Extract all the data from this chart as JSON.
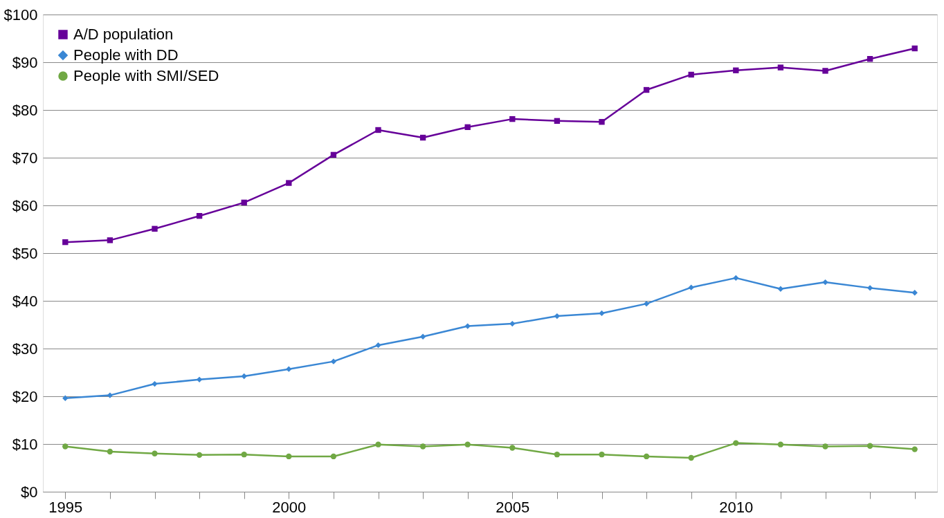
{
  "chart_data": {
    "type": "line",
    "categories": [
      "1995",
      null,
      null,
      null,
      null,
      "2000",
      null,
      null,
      null,
      null,
      "2005",
      null,
      null,
      null,
      null,
      "2010",
      null,
      null,
      null,
      null
    ],
    "series": [
      {
        "name": "A/D population",
        "color": "#660099",
        "marker": "square",
        "values": [
          52.3,
          52.7,
          55.1,
          57.8,
          60.6,
          64.7,
          70.6,
          75.8,
          74.2,
          76.4,
          78.1,
          77.7,
          77.5,
          84.2,
          87.4,
          88.3,
          88.9,
          88.2,
          90.7,
          92.9
        ]
      },
      {
        "name": "People with DD",
        "color": "#3a87d4",
        "marker": "diamond",
        "values": [
          19.6,
          20.2,
          22.6,
          23.5,
          24.2,
          25.7,
          27.3,
          30.7,
          32.5,
          34.7,
          35.2,
          36.8,
          37.4,
          39.4,
          42.8,
          44.8,
          42.5,
          43.9,
          42.7,
          41.7
        ]
      },
      {
        "name": "People with SMI/SED",
        "color": "#70a844",
        "marker": "circle",
        "values": [
          9.5,
          8.4,
          8.0,
          7.7,
          7.8,
          7.4,
          7.4,
          9.9,
          9.5,
          9.9,
          9.2,
          7.8,
          7.8,
          7.4,
          7.1,
          10.2,
          9.9,
          9.5,
          9.6,
          8.9
        ]
      }
    ],
    "ylim": [
      0,
      100
    ],
    "yticks": [
      {
        "value": 0,
        "label": "$0"
      },
      {
        "value": 10,
        "label": "$10"
      },
      {
        "value": 20,
        "label": "$20"
      },
      {
        "value": 30,
        "label": "$30"
      },
      {
        "value": 40,
        "label": "$40"
      },
      {
        "value": 50,
        "label": "$50"
      },
      {
        "value": 60,
        "label": "$60"
      },
      {
        "value": 70,
        "label": "$70"
      },
      {
        "value": 80,
        "label": "$80"
      },
      {
        "value": 90,
        "label": "$90"
      },
      {
        "value": 100,
        "label": "$100"
      }
    ],
    "grid": "y",
    "legend": "top left",
    "line_style": "solid"
  }
}
